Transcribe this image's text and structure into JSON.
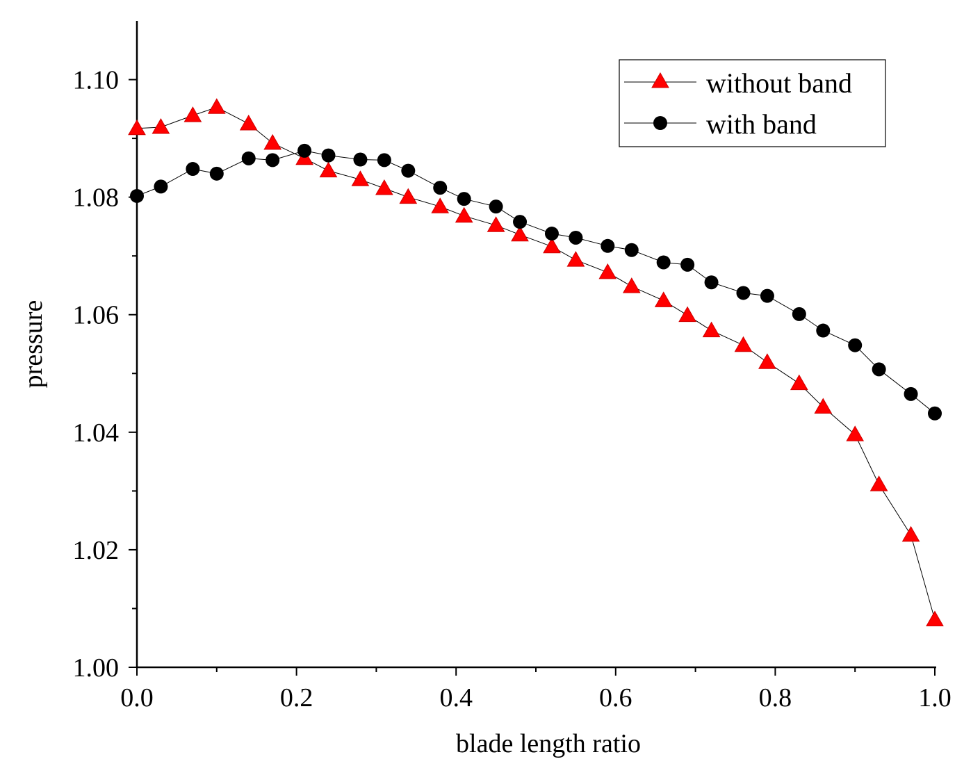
{
  "chart_data": {
    "type": "line",
    "title": "",
    "xlabel": "blade length ratio",
    "ylabel": "pressure",
    "xlim": [
      0.0,
      1.0
    ],
    "ylim": [
      1.0,
      1.11
    ],
    "x_ticks": [
      0.0,
      0.2,
      0.4,
      0.6,
      0.8,
      1.0
    ],
    "x_tick_labels": [
      "0.0",
      "0.2",
      "0.4",
      "0.6",
      "0.8",
      "1.0"
    ],
    "x_minor_ticks": [
      0.1,
      0.3,
      0.5,
      0.7,
      0.9
    ],
    "y_ticks": [
      1.0,
      1.02,
      1.04,
      1.06,
      1.08,
      1.1
    ],
    "y_tick_labels": [
      "1.00",
      "1.02",
      "1.04",
      "1.06",
      "1.08",
      "1.10"
    ],
    "y_minor_ticks": [
      1.01,
      1.03,
      1.05,
      1.07,
      1.09
    ],
    "grid": false,
    "legend_position": "top-right",
    "series": [
      {
        "name": "without band",
        "marker": "triangle",
        "color": "#ff0000",
        "x": [
          0.0,
          0.03,
          0.07,
          0.1,
          0.14,
          0.17,
          0.21,
          0.24,
          0.28,
          0.31,
          0.34,
          0.38,
          0.41,
          0.45,
          0.48,
          0.52,
          0.55,
          0.59,
          0.62,
          0.66,
          0.69,
          0.72,
          0.76,
          0.79,
          0.83,
          0.86,
          0.9,
          0.93,
          0.97,
          1.0
        ],
        "values": [
          1.0917,
          1.0919,
          1.0939,
          1.0953,
          1.0925,
          1.0892,
          1.0866,
          1.0845,
          1.083,
          1.0815,
          1.08,
          1.0784,
          1.0768,
          1.0752,
          1.0736,
          1.0716,
          1.0693,
          1.0672,
          1.0648,
          1.0624,
          1.0599,
          1.0573,
          1.0548,
          1.0519,
          1.0483,
          1.0443,
          1.0396,
          1.0311,
          1.0225,
          1.0081
        ]
      },
      {
        "name": "with band",
        "marker": "circle",
        "color": "#000000",
        "x": [
          0.0,
          0.03,
          0.07,
          0.1,
          0.14,
          0.17,
          0.21,
          0.24,
          0.28,
          0.31,
          0.34,
          0.38,
          0.41,
          0.45,
          0.48,
          0.52,
          0.55,
          0.59,
          0.62,
          0.66,
          0.69,
          0.72,
          0.76,
          0.79,
          0.83,
          0.86,
          0.9,
          0.93,
          0.97,
          1.0
        ],
        "values": [
          1.0802,
          1.0818,
          1.0848,
          1.084,
          1.0866,
          1.0863,
          1.0879,
          1.0871,
          1.0864,
          1.0863,
          1.0845,
          1.0816,
          1.0797,
          1.0784,
          1.0758,
          1.0738,
          1.0731,
          1.0717,
          1.071,
          1.0689,
          1.0685,
          1.0655,
          1.0637,
          1.0632,
          1.0601,
          1.0573,
          1.0548,
          1.0507,
          1.0465,
          1.0432
        ]
      }
    ]
  }
}
